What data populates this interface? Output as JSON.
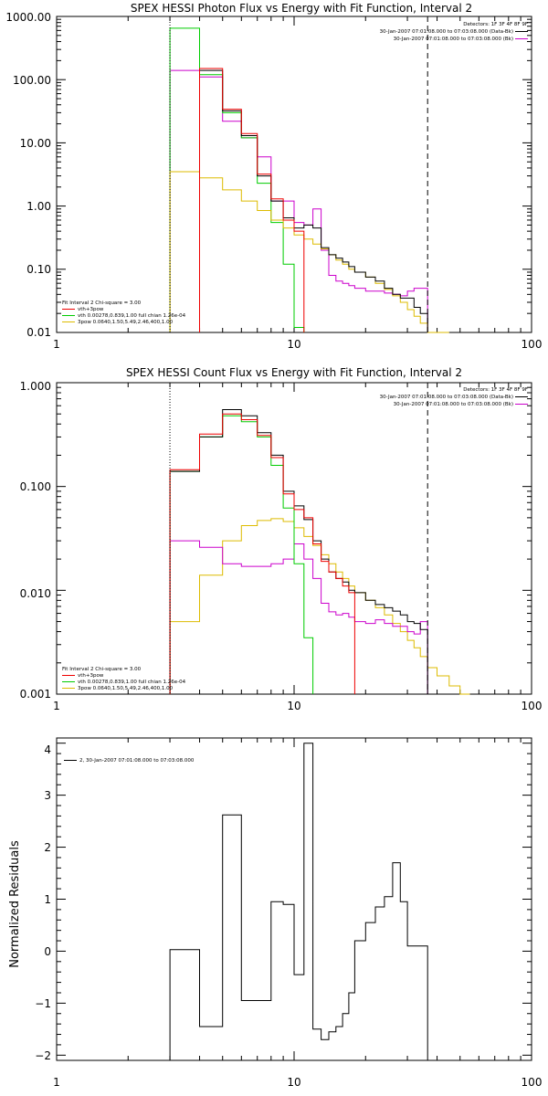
{
  "chart_data": [
    {
      "type": "line",
      "title": "SPEX HESSI Photon Flux vs Energy with Fit Function, Interval 2",
      "xlabel": "",
      "ylabel": "",
      "xscale": "log",
      "yscale": "log",
      "xlim": [
        1,
        100
      ],
      "ylim": [
        0.01,
        1000
      ],
      "x_tick_labels": [
        "1",
        "10",
        "100"
      ],
      "x_tick_values": [
        1,
        10,
        100
      ],
      "y_tick_labels": [
        "0.01",
        "0.10",
        "1.00",
        "10.00",
        "100.00",
        "1000.00"
      ],
      "y_tick_values": [
        0.01,
        0.1,
        1,
        10,
        100,
        1000
      ],
      "vlines": [
        {
          "x": 3.0,
          "style": "dotted",
          "color": "#000000"
        },
        {
          "x": 36.5,
          "style": "dashed",
          "color": "#000000"
        }
      ],
      "legend_topright": {
        "position": "top-right",
        "header": "Detectors: 1F 3F 4F 8F 9F",
        "entries": [
          {
            "text": "30-Jan-2007 07:01:08.000 to 07:03:08.000 (Data-Bk)",
            "color": "#000000"
          },
          {
            "text": "30-Jan-2007 07:01:08.000 to 07:03:08.000 (Bk)",
            "color": "#cc00cc"
          }
        ]
      },
      "legend_bottomleft": {
        "position": "bottom-left",
        "header": "Fit Interval 2   Chi-square = 3.00",
        "entries": [
          {
            "text": "vth+3pow",
            "color": "#ee0000"
          },
          {
            "text": "vth 0.00278,0.839,1.00   full chian 1.26e-04",
            "color": "#00cc00"
          },
          {
            "text": "3pow 0.0640,1.50,5.49,2.46,400,1.00",
            "color": "#ddbb00"
          }
        ]
      },
      "series": [
        {
          "color": "#cc00cc",
          "edges": [
            3.0,
            4.0,
            5.0,
            6.0,
            7.0,
            8.0,
            9.0,
            10.0,
            11.0,
            12.0,
            13.0,
            14.0,
            15.0,
            16.0,
            17.0,
            18.0,
            20.0,
            22.0,
            24.0,
            26.0,
            28.0,
            30.0,
            32.0,
            34.0,
            36.5
          ],
          "values": [
            140,
            110,
            22,
            12,
            6,
            1.2,
            1.2,
            0.55,
            0.5,
            0.9,
            0.2,
            0.08,
            0.065,
            0.06,
            0.055,
            0.05,
            0.045,
            0.045,
            0.042,
            0.04,
            0.038,
            0.045,
            0.05,
            0.05
          ]
        },
        {
          "color": "#00cc00",
          "edges": [
            3.0,
            4.0,
            5.0,
            6.0,
            7.0,
            8.0,
            9.0,
            10.0,
            11.0
          ],
          "values": [
            650,
            120,
            30,
            12,
            2.3,
            0.55,
            0.12,
            0.012
          ]
        },
        {
          "color": "#ddbb00",
          "edges": [
            3.0,
            4.0,
            5.0,
            6.0,
            7.0,
            8.0,
            9.0,
            10.0,
            11.0,
            12.0,
            13.0,
            14.0,
            15.0,
            16.0,
            17.0,
            18.0,
            20.0,
            22.0,
            24.0,
            26.0,
            28.0,
            30.0,
            32.0,
            34.0,
            36.5,
            40.0,
            45.0
          ],
          "values": [
            3.5,
            2.8,
            1.8,
            1.2,
            0.85,
            0.6,
            0.45,
            0.35,
            0.3,
            0.25,
            0.21,
            0.17,
            0.14,
            0.12,
            0.1,
            0.09,
            0.075,
            0.06,
            0.048,
            0.038,
            0.03,
            0.023,
            0.018,
            0.014,
            0.01,
            0.007
          ]
        },
        {
          "color": "#000000",
          "edges": [
            4.0,
            5.0,
            6.0,
            7.0,
            8.0,
            9.0,
            10.0,
            11.0,
            12.0,
            13.0,
            14.0,
            15.0,
            16.0,
            17.0,
            18.0,
            20.0,
            22.0,
            24.0,
            26.0,
            28.0,
            30.0,
            32.0,
            34.0,
            36.5
          ],
          "values": [
            140,
            32,
            13,
            3.0,
            1.2,
            0.65,
            0.45,
            0.5,
            0.45,
            0.22,
            0.17,
            0.15,
            0.13,
            0.11,
            0.09,
            0.075,
            0.065,
            0.05,
            0.04,
            0.035,
            0.035,
            0.025,
            0.02
          ]
        },
        {
          "color": "#ee0000",
          "edges": [
            4.0,
            5.0,
            6.0,
            7.0,
            8.0,
            9.0,
            10.0,
            11.0
          ],
          "values": [
            150,
            34,
            14,
            3.2,
            1.3,
            0.6,
            0.4
          ]
        }
      ]
    },
    {
      "type": "line",
      "title": "SPEX HESSI Count Flux vs Energy with Fit Function, Interval 2",
      "xlabel": "",
      "ylabel": "",
      "xscale": "log",
      "yscale": "log",
      "xlim": [
        1,
        100
      ],
      "ylim": [
        0.001,
        1.0
      ],
      "x_tick_labels": [
        "1",
        "10",
        "100"
      ],
      "x_tick_values": [
        1,
        10,
        100
      ],
      "y_tick_labels": [
        "0.001",
        "0.010",
        "0.100",
        "1.000"
      ],
      "y_tick_values": [
        0.001,
        0.01,
        0.1,
        1.0
      ],
      "vlines": [
        {
          "x": 3.0,
          "style": "dotted",
          "color": "#000000"
        },
        {
          "x": 36.5,
          "style": "dashed",
          "color": "#000000"
        }
      ],
      "legend_topright": {
        "position": "top-right",
        "header": "Detectors: 1F 3F 4F 8F 9F",
        "entries": [
          {
            "text": "30-Jan-2007 07:01:08.000 to 07:03:08.000 (Data-Bk)",
            "color": "#000000"
          },
          {
            "text": "30-Jan-2007 07:01:08.000 to 07:03:08.000 (Bk)",
            "color": "#cc00cc"
          }
        ]
      },
      "legend_bottomleft": {
        "position": "bottom-left",
        "header": "Fit Interval 2   Chi-square = 3.00",
        "entries": [
          {
            "text": "vth+3pow",
            "color": "#ee0000"
          },
          {
            "text": "vth 0.00278,0.839,1.00   full chian 1.26e-04",
            "color": "#00cc00"
          },
          {
            "text": "3pow 0.0640,1.50,5.49,2.46,400,1.00",
            "color": "#ddbb00"
          }
        ]
      },
      "series": [
        {
          "color": "#ddbb00",
          "edges": [
            3.0,
            4.0,
            5.0,
            6.0,
            7.0,
            8.0,
            9.0,
            10.0,
            11.0,
            12.0,
            13.0,
            14.0,
            15.0,
            16.0,
            17.0,
            18.0,
            20.0,
            22.0,
            24.0,
            26.0,
            28.0,
            30.0,
            32.0,
            34.0,
            36.5,
            40.0,
            45.0,
            50.0,
            55.0
          ],
          "values": [
            0.005,
            0.014,
            0.03,
            0.042,
            0.047,
            0.049,
            0.046,
            0.04,
            0.033,
            0.027,
            0.022,
            0.018,
            0.015,
            0.013,
            0.011,
            0.0095,
            0.008,
            0.0068,
            0.0058,
            0.0048,
            0.004,
            0.0033,
            0.0028,
            0.0023,
            0.0018,
            0.0015,
            0.0012,
            0.001
          ]
        },
        {
          "color": "#cc00cc",
          "edges": [
            3.0,
            4.0,
            5.0,
            6.0,
            7.0,
            8.0,
            9.0,
            10.0,
            11.0,
            12.0,
            13.0,
            14.0,
            15.0,
            16.0,
            17.0,
            18.0,
            20.0,
            22.0,
            24.0,
            26.0,
            28.0,
            30.0,
            32.0,
            34.0,
            36.5
          ],
          "values": [
            0.03,
            0.026,
            0.018,
            0.017,
            0.017,
            0.018,
            0.02,
            0.028,
            0.02,
            0.013,
            0.0075,
            0.0062,
            0.0058,
            0.006,
            0.0055,
            0.005,
            0.0048,
            0.0052,
            0.0048,
            0.0045,
            0.0045,
            0.004,
            0.0038,
            0.005
          ]
        },
        {
          "color": "#00cc00",
          "edges": [
            3.0,
            4.0,
            5.0,
            6.0,
            7.0,
            8.0,
            9.0,
            10.0,
            11.0,
            12.0
          ],
          "values": [
            0.14,
            0.3,
            0.48,
            0.42,
            0.3,
            0.16,
            0.062,
            0.018,
            0.0035,
            0.001
          ]
        },
        {
          "color": "#000000",
          "edges": [
            3.0,
            4.0,
            5.0,
            6.0,
            7.0,
            8.0,
            9.0,
            10.0,
            11.0,
            12.0,
            13.0,
            14.0,
            15.0,
            16.0,
            17.0,
            18.0,
            20.0,
            22.0,
            24.0,
            26.0,
            28.0,
            30.0,
            32.0,
            34.0,
            36.5
          ],
          "values": [
            0.14,
            0.3,
            0.55,
            0.48,
            0.33,
            0.2,
            0.09,
            0.065,
            0.048,
            0.03,
            0.02,
            0.015,
            0.013,
            0.012,
            0.01,
            0.0095,
            0.008,
            0.0073,
            0.0068,
            0.0063,
            0.0058,
            0.005,
            0.0048,
            0.0042
          ]
        },
        {
          "color": "#ee0000",
          "edges": [
            3.0,
            4.0,
            5.0,
            6.0,
            7.0,
            8.0,
            9.0,
            10.0,
            11.0,
            12.0,
            13.0,
            14.0,
            15.0,
            16.0,
            17.0,
            18.0
          ],
          "values": [
            0.145,
            0.32,
            0.5,
            0.44,
            0.31,
            0.19,
            0.085,
            0.06,
            0.05,
            0.028,
            0.019,
            0.015,
            0.013,
            0.011,
            0.0095
          ]
        }
      ]
    },
    {
      "type": "line",
      "title": "",
      "xlabel": "",
      "ylabel": "Normalized Residuals",
      "xscale": "log",
      "yscale": "linear",
      "xlim": [
        1,
        100
      ],
      "ylim": [
        -2.1,
        4.1
      ],
      "x_tick_labels": [
        "1",
        "10",
        "100"
      ],
      "x_tick_values": [
        1,
        10,
        100
      ],
      "y_tick_labels": [
        "−2",
        "−1",
        "0",
        "1",
        "2",
        "3",
        "4"
      ],
      "y_tick_values": [
        -2,
        -1,
        0,
        1,
        2,
        3,
        4
      ],
      "legend_topleft": {
        "position": "top-left",
        "entries": [
          {
            "text": "2, 30-Jan-2007 07:01:08.000 to 07:03:08.000",
            "color": "#000000"
          }
        ]
      },
      "series": [
        {
          "color": "#000000",
          "edges": [
            3.0,
            4.0,
            5.0,
            6.0,
            7.0,
            8.0,
            9.0,
            10.0,
            11.0,
            12.0,
            13.0,
            14.0,
            15.0,
            16.0,
            17.0,
            18.0,
            20.0,
            22.0,
            24.0,
            26.0,
            28.0,
            30.0,
            32.0,
            34.0,
            36.5
          ],
          "values": [
            0.03,
            -1.45,
            2.62,
            -0.95,
            -0.95,
            0.95,
            0.9,
            -0.45,
            4.0,
            -1.5,
            -1.7,
            -1.55,
            -1.45,
            -1.2,
            -0.8,
            0.2,
            0.55,
            0.85,
            1.05,
            1.7,
            0.95,
            0.1,
            0.1,
            0.1
          ]
        }
      ]
    }
  ]
}
